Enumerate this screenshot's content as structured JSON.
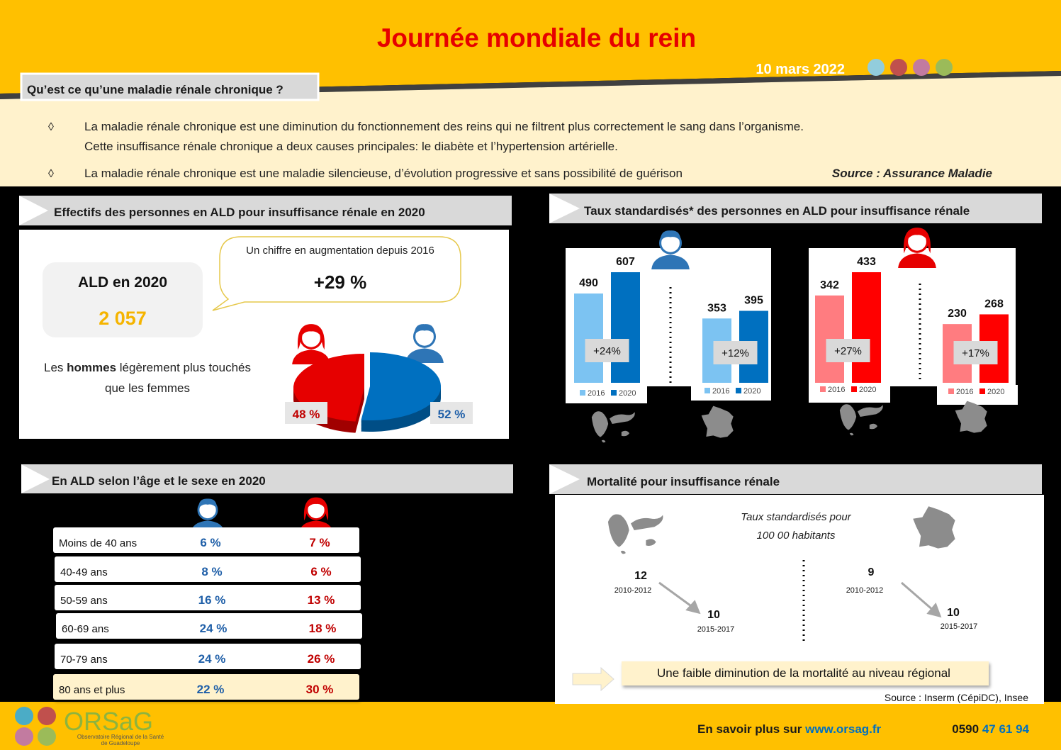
{
  "header": {
    "title": "Journée mondiale du rein",
    "date": "10 mars 2022"
  },
  "intro": {
    "heading": "Qu’est ce qu’une maladie rénale chronique ?",
    "bullet": "◊",
    "lines": [
      "La maladie rénale chronique est une diminution du fonctionnement des reins qui ne filtrent plus correctement le sang dans l’organisme.",
      "Cette insuffisance rénale chronique a deux causes principales: le diabète et l’hypertension artérielle.",
      "La maladie rénale chronique est une maladie silencieuse, d’évolution progressive et sans possibilité de guérison"
    ],
    "source": "Source :  Assurance Maladie"
  },
  "ald": {
    "title": "Effectifs des personnes en ALD pour insuffisance rénale en 2020",
    "box_title": "ALD en 2020",
    "box_value": "2 057",
    "callout_text": "Un chiffre en augmentation depuis 2016",
    "callout_value": "+29 %",
    "note": [
      "Les ",
      "hommes",
      " légèrement plus touchés",
      "que les femmes"
    ],
    "pie": {
      "type": "pie",
      "values": [
        48,
        52
      ],
      "value_labels": [
        "48 %",
        "52 %"
      ],
      "colors": [
        "#e60000",
        "#0070c0"
      ]
    }
  },
  "rates": {
    "title": "Taux standardisés* des personnes en ALD pour  insuffisance rénale",
    "years": [
      "2016",
      "2020"
    ],
    "charts": [
      {
        "type": "bar",
        "colors": [
          "#7cc3f2",
          "#0070c0"
        ],
        "groups": [
          {
            "values": [
              490,
              607
            ],
            "change": "+24%"
          },
          {
            "values": [
              353,
              395
            ],
            "change": "+12%"
          }
        ]
      },
      {
        "type": "bar",
        "colors": [
          "#ff7c80",
          "#ff0000"
        ],
        "groups": [
          {
            "values": [
              342,
              433
            ],
            "change": "+27%"
          },
          {
            "values": [
              230,
              268
            ],
            "change": "+17%"
          }
        ]
      }
    ]
  },
  "age": {
    "title": "En ALD selon l’âge et le sexe en 2020",
    "rows": [
      [
        "Moins de 40 ans",
        "6 %",
        "7 %"
      ],
      [
        "40-49 ans",
        "8 %",
        "6 %"
      ],
      [
        "50-59 ans",
        "16 %",
        "13 %"
      ],
      [
        "60-69 ans",
        "24 %",
        "18 %"
      ],
      [
        "70-79 ans",
        "24 %",
        "26 %"
      ],
      [
        "80 ans et plus",
        "22  %",
        "30 %"
      ]
    ]
  },
  "mortality": {
    "title": "Mortalité pour insuffisance rénale",
    "subtitle": [
      "Taux standardisés pour",
      "100 00 habitants"
    ],
    "regional": [
      {
        "value": 12,
        "period": "2010-2012"
      },
      {
        "value": 10,
        "period": "2015-2017"
      }
    ],
    "national": [
      {
        "value": 9,
        "period": "2010-2012"
      },
      {
        "value": 10,
        "period": "2015-2017"
      }
    ],
    "conclusion": "Une faible diminution de la mortalité au niveau régional",
    "source": "Source : Inserm (CépiDC), Insee"
  },
  "footer": {
    "more": "En savoir plus sur ",
    "url": "www.orsag.fr",
    "phone_prefix": "0590 ",
    "phone": "47 61 94",
    "logo": "ORSaG",
    "logo_sub": [
      "Observatoire Régional de la Santé",
      "de Guadeloupe"
    ]
  }
}
